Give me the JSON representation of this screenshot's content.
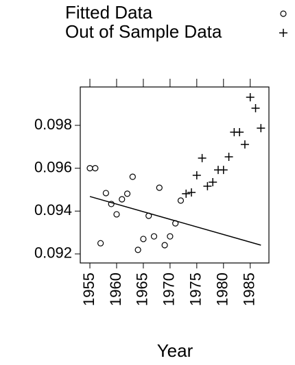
{
  "chart_data": {
    "type": "scatter",
    "x_label": "Year",
    "xlim": [
      1953.2,
      1988.5
    ],
    "ylim": [
      0.09158,
      0.09979
    ],
    "xticks": [
      1955,
      1960,
      1965,
      1970,
      1975,
      1980,
      1985
    ],
    "yticks": [
      0.092,
      0.094,
      0.096,
      0.098
    ],
    "legend": "top",
    "series": [
      {
        "name": "Fitted Data",
        "marker": "circle",
        "color": "#000000",
        "x": [
          1955,
          1956,
          1957,
          1958,
          1959,
          1960,
          1961,
          1962,
          1963,
          1964,
          1965,
          1966,
          1967,
          1968,
          1969,
          1970,
          1971,
          1972
        ],
        "values": [
          0.096,
          0.096,
          0.0925,
          0.09484,
          0.09433,
          0.09385,
          0.09455,
          0.09481,
          0.0956,
          0.09219,
          0.0927,
          0.09378,
          0.09282,
          0.09509,
          0.09241,
          0.09282,
          0.09343,
          0.09449
        ]
      },
      {
        "name": "Out of Sample Data",
        "marker": "plus",
        "color": "#000000",
        "x": [
          1973,
          1974,
          1975,
          1976,
          1977,
          1978,
          1979,
          1980,
          1981,
          1982,
          1983,
          1984,
          1985,
          1986,
          1987
        ],
        "values": [
          0.09481,
          0.09487,
          0.09567,
          0.09647,
          0.09516,
          0.09535,
          0.09592,
          0.09592,
          0.09653,
          0.09768,
          0.09768,
          0.09711,
          0.09931,
          0.0988,
          0.09787
        ]
      }
    ],
    "fit_line": {
      "color": "#000000",
      "x": [
        1955,
        1987
      ],
      "values": [
        0.09468,
        0.09241
      ]
    }
  }
}
